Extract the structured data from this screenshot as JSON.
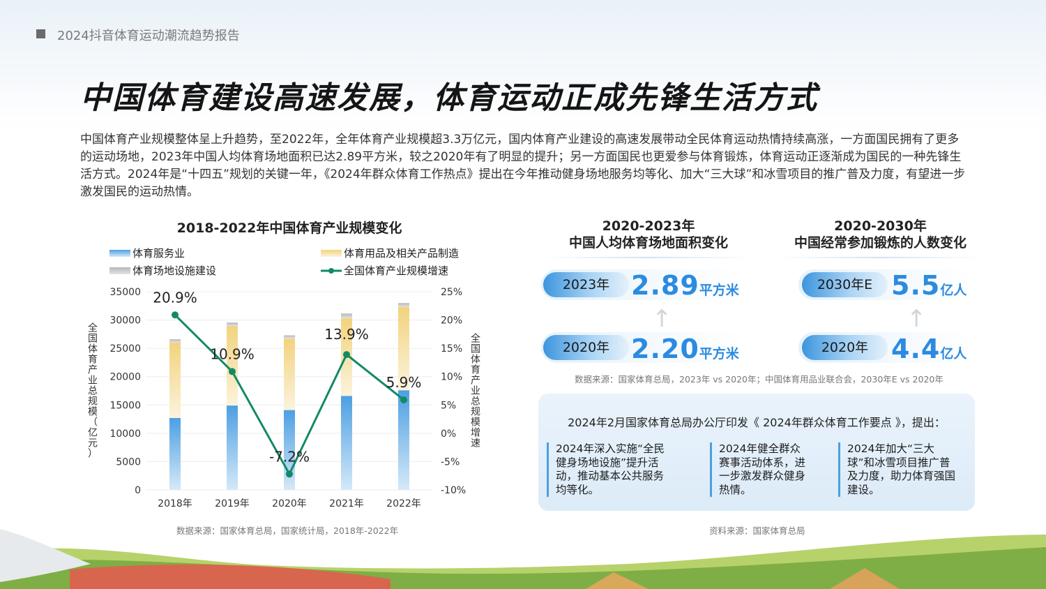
{
  "header": {
    "report_title": "2024抖音体育运动潮流趋势报告"
  },
  "headline": "中国体育建设高速发展，体育运动正成先锋生活方式",
  "intro": "中国体育产业规模整体呈上升趋势，至2022年，全年体育产业规模超3.3万亿元，国内体育产业建设的高速发展带动全民体育运动热情持续高涨，一方面国民拥有了更多的运动场地，2023年中国人均体育场地面积已达2.89平方米，较之2020年有了明显的提升；另一方面国民也更爱参与体育锻炼，体育运动正逐渐成为国民的一种先锋生活方式。2024年是“十四五”规划的关键一年，《2024年群众体育工作热点》提出在今年推动健身场地服务均等化、加大“三大球”和冰雪项目的推广普及力度，有望进一步激发国民的运动热情。",
  "chart_data": {
    "type": "bar",
    "title": "2018-2022年中国体育产业规模变化",
    "categories": [
      "2018年",
      "2019年",
      "2020年",
      "2021年",
      "2022年"
    ],
    "series": [
      {
        "name": "体育服务业",
        "kind": "stacked-bar",
        "color": "#4d9fe3",
        "values": [
          12700,
          14900,
          14100,
          16600,
          17600
        ]
      },
      {
        "name": "体育用品及相关产品制造",
        "kind": "stacked-bar",
        "color": "#f2d37e",
        "values": [
          13300,
          14000,
          12600,
          13700,
          14700
        ]
      },
      {
        "name": "体育场地设施建设",
        "kind": "stacked-bar",
        "color": "#c4c4c4",
        "values": [
          600,
          650,
          600,
          850,
          700
        ]
      },
      {
        "name": "全国体育产业规模增速",
        "kind": "line",
        "color": "#138a66",
        "axis": "right",
        "values": [
          20.9,
          10.9,
          -7.2,
          13.9,
          5.9
        ],
        "labels": [
          "20.9%",
          "10.9%",
          "-7.2%",
          "13.9%",
          "5.9%"
        ]
      }
    ],
    "ylabel": "全国体育产业总规模（亿元）",
    "ylim": [
      0,
      35000
    ],
    "yticks": [
      "0",
      "5000",
      "10000",
      "15000",
      "20000",
      "25000",
      "30000",
      "35000"
    ],
    "y2label": "全国体育产业总规模增速",
    "y2lim": [
      -10,
      25
    ],
    "y2ticks": [
      "-10%",
      "-5%",
      "0%",
      "5%",
      "10%",
      "15%",
      "20%",
      "25%"
    ],
    "grid": true,
    "legend": "top"
  },
  "chart_source": "数据来源：国家体育总局，国家统计局，2018年-2022年",
  "area_panel": {
    "title_line1": "2020-2023年",
    "title_line2": "中国人均体育场地面积变化",
    "rows": [
      {
        "year": "2023年",
        "value": "2.89",
        "unit": "平方米"
      },
      {
        "year": "2020年",
        "value": "2.20",
        "unit": "平方米"
      }
    ]
  },
  "exercise_panel": {
    "title_line1": "2020-2030年",
    "title_line2": "中国经常参加锻炼的人数变化",
    "rows": [
      {
        "year": "2030年E",
        "value": "5.5",
        "unit": "亿人"
      },
      {
        "year": "2020年",
        "value": "4.4",
        "unit": "亿人"
      }
    ]
  },
  "panels_source": "数据来源：国家体育总局，2023年 vs 2020年；中国体育用品业联合会，2030年E vs 2020年",
  "policy": {
    "heading": "2024年2月国家体育总局办公厅印发《 2024年群众体育工作要点 》，提出：",
    "items": [
      "2024年深入实施“全民健身场地设施”提升活动，推动基本公共服务均等化。",
      "2024年健全群众赛事活动体系，进一步激发群众健身热情。",
      "2024年加大“三大球”和冰雪项目推广普及力度，助力体育强国建设。"
    ]
  },
  "policy_source": "资料来源：国家体育总局",
  "colors": {
    "accent_blue": "#2b8be0",
    "line_green": "#138a66"
  }
}
